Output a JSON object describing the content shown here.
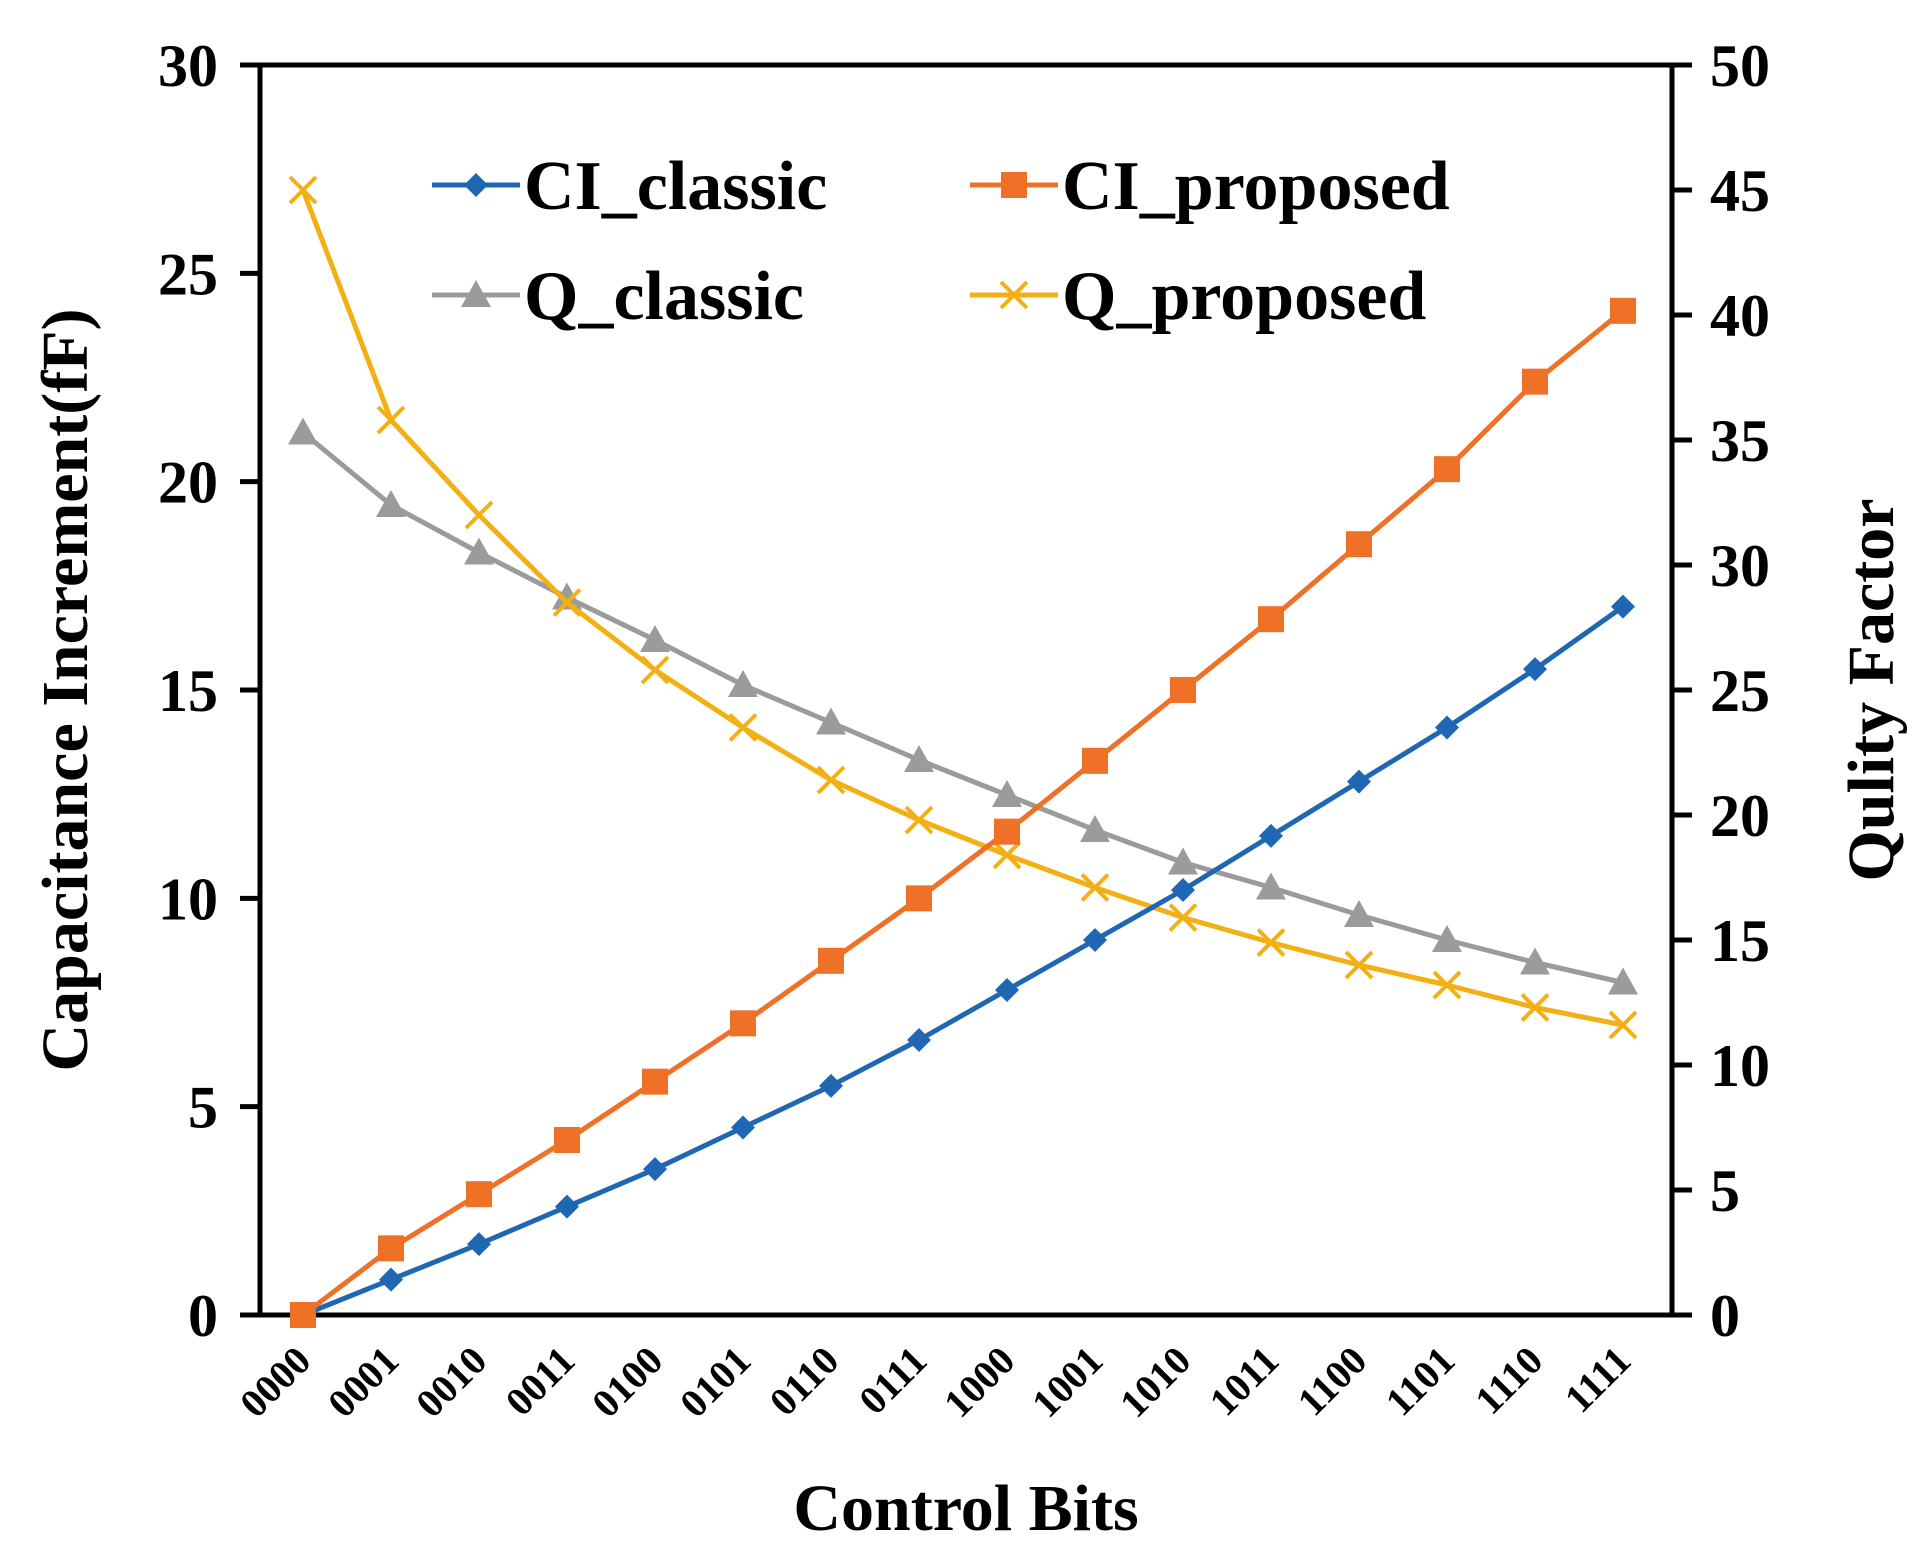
{
  "chart_data": {
    "type": "line",
    "title": "",
    "xlabel": "Control Bits",
    "ylabel": "Capacitance Increment(fF)",
    "y2label": "Qulity Factor",
    "categories": [
      "0000",
      "0001",
      "0010",
      "0011",
      "0100",
      "0101",
      "0110",
      "0111",
      "1000",
      "1001",
      "1010",
      "1011",
      "1100",
      "1101",
      "1110",
      "1111"
    ],
    "ylim": [
      0,
      30
    ],
    "y2lim": [
      0,
      50
    ],
    "yticks": [
      "0",
      "5",
      "10",
      "15",
      "20",
      "25",
      "30"
    ],
    "y2ticks": [
      "0",
      "5",
      "10",
      "15",
      "20",
      "25",
      "30",
      "35",
      "40",
      "45",
      "50"
    ],
    "legend_position": "top",
    "grid": false,
    "series": [
      {
        "name": "CI_classic",
        "axis": "left",
        "marker": "diamond",
        "color": "#1f67b3",
        "values": [
          0,
          0.85,
          1.7,
          2.6,
          3.5,
          4.5,
          5.5,
          6.6,
          7.8,
          9.0,
          10.2,
          11.5,
          12.8,
          14.1,
          15.5,
          17.0
        ]
      },
      {
        "name": "CI_proposed",
        "axis": "left",
        "marker": "square",
        "color": "#ef7128",
        "values": [
          0,
          1.6,
          2.9,
          4.2,
          5.6,
          7.0,
          8.5,
          10.0,
          11.6,
          13.3,
          15.0,
          16.7,
          18.5,
          20.3,
          22.4,
          24.1
        ]
      },
      {
        "name": "Q_classic",
        "axis": "right",
        "marker": "triangle",
        "color": "#9b9b9b",
        "values": [
          35.3,
          32.4,
          30.5,
          28.7,
          27.0,
          25.2,
          23.7,
          22.2,
          20.8,
          19.4,
          18.1,
          17.1,
          16.0,
          15.0,
          14.1,
          13.3
        ]
      },
      {
        "name": "Q_proposed",
        "axis": "right",
        "marker": "x",
        "color": "#f3b014",
        "values": [
          45.0,
          35.8,
          32.0,
          28.5,
          25.8,
          23.5,
          21.4,
          19.8,
          18.4,
          17.1,
          15.9,
          14.9,
          14.0,
          13.2,
          12.3,
          11.6
        ]
      }
    ]
  }
}
